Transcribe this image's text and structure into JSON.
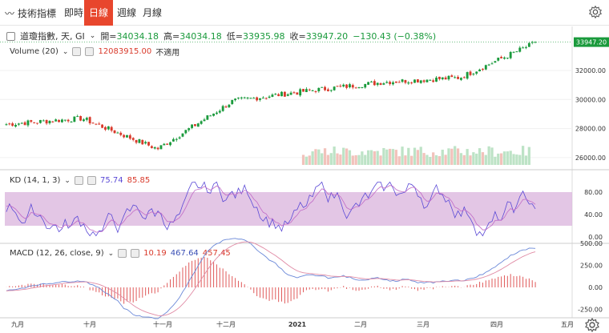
{
  "app": {
    "brand": "技術指標",
    "tabs": [
      "即時",
      "日線",
      "週線",
      "月線"
    ],
    "active_tab": 1
  },
  "symbol": {
    "name": "道瓊指數, 天, GI",
    "open_label": "開=",
    "open": "34034.18",
    "high_label": "高=",
    "high": "34034.18",
    "low_label": "低=",
    "low": "33935.98",
    "close_label": "收=",
    "close": "33947.20",
    "change": "−130.43 (−0.38%)",
    "last_price": "33947.20"
  },
  "volume": {
    "label": "Volume (20)",
    "value": "12083915.00",
    "extra": "不適用"
  },
  "kd": {
    "label": "KD (14, 1, 3)",
    "k": "75.74",
    "d": "85.85"
  },
  "macd": {
    "label": "MACD (12, 26, close, 9)",
    "hist": "10.19",
    "macd": "467.64",
    "signal": "457.45"
  },
  "axes": {
    "price_ticks": [
      "32000.00",
      "30000.00",
      "28000.00",
      "26000.00"
    ],
    "kd_ticks": [
      "80.00",
      "40.00",
      "0.00"
    ],
    "macd_ticks": [
      "500.00",
      "250.00",
      "0.00",
      "-250.00"
    ],
    "x_labels": [
      "九月",
      "十月",
      "十一月",
      "十二月",
      "2021",
      "二月",
      "三月",
      "四月",
      "五月"
    ]
  },
  "colors": {
    "up": "#1a9a3c",
    "down": "#d93a2b",
    "kd_band": "#d9b3dc",
    "k_line": "#5b4ad6",
    "d_line": "#c06ac6",
    "macd_line": "#6a88d8",
    "signal_line": "#e08aa4",
    "hist": "#e05a5a",
    "active_tab": "#e8462d"
  },
  "chart_data": {
    "type": "line",
    "title": "道瓊指數",
    "x": [
      "九月",
      "十月",
      "十一月",
      "十二月",
      "2021",
      "二月",
      "三月",
      "四月"
    ],
    "series": [
      {
        "name": "close",
        "values": [
          28300,
          28700,
          26600,
          29900,
          30600,
          31200,
          31500,
          33900
        ]
      }
    ],
    "ylim": [
      25500,
      34200
    ],
    "last": 33947.2
  }
}
